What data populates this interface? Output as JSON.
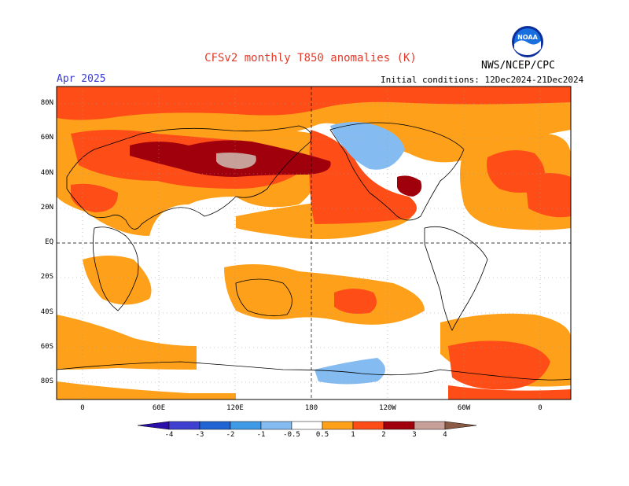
{
  "title": "CFSv2 monthly T850 anomalies (K)",
  "period": "Apr 2025",
  "agency": "NWS/NCEP/CPC",
  "initial_conditions": "Initial conditions: 12Dec2024-21Dec2024",
  "logo_text": "NOAA",
  "lat_labels": [
    "80N",
    "60N",
    "40N",
    "20N",
    "EQ",
    "20S",
    "40S",
    "60S",
    "80S"
  ],
  "lon_labels": [
    "0",
    "60E",
    "120E",
    "180",
    "120W",
    "60W",
    "0"
  ],
  "colorbar": {
    "labels": [
      "-4",
      "-3",
      "-2",
      "-1",
      "-0.5",
      "0.5",
      "1",
      "2",
      "3",
      "4"
    ],
    "colors": [
      "#2a10a8",
      "#3f3fd0",
      "#1f64d2",
      "#3f9ae6",
      "#84bcf2",
      "#ffffff",
      "#fea01a",
      "#ff4d18",
      "#a0000c",
      "#c8a09a",
      "#8a5a44"
    ]
  },
  "colors": {
    "light_blue": "#84bcf2",
    "orange": "#fea01a",
    "red_orange": "#ff4d18",
    "dark_red": "#a0000c",
    "pink_gray": "#c8a09a"
  }
}
